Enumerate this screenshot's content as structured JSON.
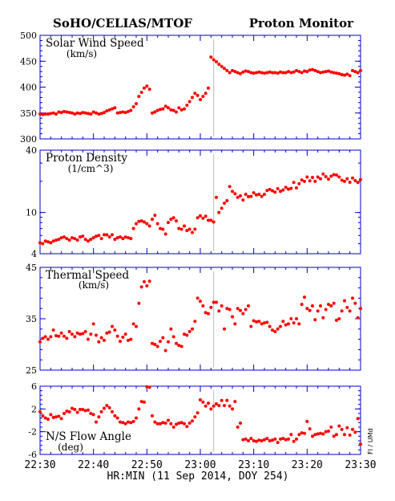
{
  "header": {
    "left": "SoHO/CELIAS/MTOF",
    "right": "Proton Monitor"
  },
  "x_axis": {
    "label": "HR:MIN (11 Sep 2014, DOY 254)",
    "ticks": [
      "22:30",
      "22:40",
      "22:50",
      "23:00",
      "23:10",
      "23:20",
      "23:30"
    ],
    "range_minutes": [
      0,
      60
    ]
  },
  "credit": "FI / UMd",
  "colors": {
    "data": "#ff0000",
    "frame": "#0000cc",
    "marker_line": "#bbbbbb"
  },
  "chart_data": [
    {
      "type": "scatter",
      "title": "Solar Wind Speed",
      "subtitle": "(km/s)",
      "ylim": [
        300,
        500
      ],
      "yscale": "linear",
      "yticks": [
        "300",
        "350",
        "400",
        "450",
        "500"
      ],
      "vertical_marker_minute": 32.5,
      "series": [
        {
          "x": [
            0,
            0.5,
            1,
            1.5,
            2,
            2.5,
            3,
            3.5,
            4,
            4.5,
            5,
            5.5,
            6,
            6.5,
            7,
            7.5,
            8,
            8.5,
            9,
            9.5,
            10,
            10.5,
            11,
            11.5,
            12,
            12.5,
            13,
            13.5,
            14,
            14.5,
            15,
            15.5,
            16,
            16.5,
            17,
            17.5,
            18,
            18.5,
            19,
            19.5,
            20,
            20.5,
            21,
            21.5,
            22,
            22.5,
            23,
            23.5,
            24,
            24.5,
            25,
            25.5,
            26,
            26.5,
            27,
            27.5,
            28,
            28.5,
            29,
            29.5,
            30,
            30.5,
            31,
            31.5,
            32,
            32.5,
            33,
            33.5,
            34,
            34.5,
            35,
            35.5,
            36,
            36.5,
            37,
            37.5,
            38,
            38.5,
            39,
            39.5,
            40,
            40.5,
            41,
            41.5,
            42,
            42.5,
            43,
            43.5,
            44,
            44.5,
            45,
            45.5,
            46,
            46.5,
            47,
            47.5,
            48,
            48.5,
            49,
            49.5,
            50,
            50.5,
            51,
            51.5,
            52,
            52.5,
            53,
            53.5,
            54,
            54.5,
            55,
            55.5,
            56,
            56.5,
            57,
            57.5,
            58,
            58.5,
            59,
            59.5,
            60
          ],
          "y": [
            348,
            347,
            348,
            348,
            349,
            350,
            348,
            352,
            351,
            353,
            352,
            351,
            350,
            348,
            350,
            349,
            351,
            350,
            349,
            348,
            352,
            350,
            348,
            349,
            351,
            354,
            356,
            358,
            360,
            350,
            351,
            352,
            351,
            353,
            355,
            362,
            368,
            382,
            390,
            398,
            402,
            396,
            350,
            352,
            355,
            357,
            358,
            363,
            360,
            356,
            355,
            352,
            360,
            356,
            358,
            365,
            372,
            380,
            388,
            384,
            376,
            382,
            388,
            398,
            458,
            453,
            449,
            444,
            440,
            436,
            432,
            428,
            432,
            430,
            428,
            426,
            429,
            431,
            430,
            428,
            427,
            428,
            429,
            428,
            427,
            428,
            429,
            428,
            428,
            427,
            429,
            428,
            428,
            430,
            428,
            429,
            432,
            430,
            428,
            431,
            430,
            433,
            434,
            432,
            430,
            428,
            429,
            430,
            431,
            429,
            428,
            427,
            426,
            424,
            423,
            425,
            422,
            432,
            430,
            428,
            432
          ]
        }
      ]
    },
    {
      "type": "scatter",
      "title": "Proton Density",
      "subtitle": "(1/cm^3)",
      "ylim": [
        4,
        40
      ],
      "yscale": "log",
      "yticks": [
        "4",
        "10",
        "40"
      ],
      "vertical_marker_minute": 32.5,
      "series": [
        {
          "x": [
            0,
            0.5,
            1,
            1.5,
            2,
            2.5,
            3,
            3.5,
            4,
            4.5,
            5,
            5.5,
            6,
            6.5,
            7,
            7.5,
            8,
            8.5,
            9,
            9.5,
            10,
            10.5,
            11,
            11.5,
            12,
            12.5,
            13,
            13.5,
            14,
            14.5,
            15,
            15.5,
            16,
            16.5,
            17,
            17.5,
            18,
            18.5,
            19,
            19.5,
            20,
            20.5,
            21,
            21.5,
            22,
            22.5,
            23,
            23.5,
            24,
            24.5,
            25,
            25.5,
            26,
            26.5,
            27,
            27.5,
            28,
            28.5,
            29,
            29.5,
            30,
            30.5,
            31,
            31.5,
            32,
            32.5,
            33,
            33.5,
            34,
            34.5,
            35,
            35.5,
            36,
            36.5,
            37,
            37.5,
            38,
            38.5,
            39,
            39.5,
            40,
            40.5,
            41,
            41.5,
            42,
            42.5,
            43,
            43.5,
            44,
            44.5,
            45,
            45.5,
            46,
            46.5,
            47,
            47.5,
            48,
            48.5,
            49,
            49.5,
            50,
            50.5,
            51,
            51.5,
            52,
            52.5,
            53,
            53.5,
            54,
            54.5,
            55,
            55.5,
            56,
            56.5,
            57,
            57.5,
            58,
            58.5,
            59,
            59.5,
            60
          ],
          "y": [
            5.1,
            5.0,
            5.3,
            5.2,
            5.1,
            5.3,
            5.4,
            5.5,
            5.7,
            5.8,
            5.6,
            5.4,
            5.7,
            5.6,
            5.4,
            5.8,
            5.9,
            5.5,
            5.3,
            5.5,
            5.7,
            5.9,
            6.0,
            5.6,
            6.1,
            6.1,
            5.8,
            6.1,
            5.5,
            5.7,
            5.8,
            5.6,
            5.8,
            5.7,
            5.6,
            7.0,
            7.8,
            8.2,
            8.3,
            8.1,
            7.8,
            7.4,
            8.6,
            9.4,
            7.8,
            7.0,
            6.9,
            6.2,
            8.0,
            8.6,
            8.9,
            8.3,
            7.0,
            6.9,
            7.4,
            6.7,
            6.9,
            6.4,
            6.9,
            8.9,
            9.3,
            8.8,
            9.2,
            8.4,
            8.4,
            8.1,
            14.0,
            10.0,
            11.0,
            12.3,
            13.0,
            17.8,
            16.0,
            15.2,
            14.0,
            14.5,
            13.2,
            15.0,
            14.2,
            14.3,
            15.5,
            14.8,
            15.0,
            14.3,
            15.0,
            16.3,
            16.7,
            16.2,
            15.7,
            17.0,
            16.0,
            16.5,
            17.5,
            16.8,
            17.1,
            19.5,
            17.3,
            19.0,
            20.6,
            20.0,
            22.0,
            20.2,
            21.8,
            20.0,
            22.0,
            21.2,
            23.5,
            22.2,
            21.0,
            22.4,
            23.2,
            23.0,
            22.0,
            20.5,
            20.0,
            21.2,
            19.6,
            21.5,
            20.3,
            19.5,
            20.8
          ]
        }
      ]
    },
    {
      "type": "scatter",
      "title": "Thermal Speed",
      "subtitle": "(km/s)",
      "ylim": [
        25,
        45
      ],
      "yscale": "linear",
      "yticks": [
        "25",
        "35",
        "45"
      ],
      "vertical_marker_minute": 32.5,
      "series": [
        {
          "x": [
            0,
            0.5,
            1,
            1.5,
            2,
            2.5,
            3,
            3.5,
            4,
            4.5,
            5,
            5.5,
            6,
            6.5,
            7,
            7.5,
            8,
            8.5,
            9,
            9.5,
            10,
            10.5,
            11,
            11.5,
            12,
            12.5,
            13,
            13.5,
            14,
            14.5,
            15,
            15.5,
            16,
            16.5,
            17,
            17.5,
            18,
            18.5,
            19,
            19.5,
            20,
            20.5,
            21,
            21.5,
            22,
            22.5,
            23,
            23.5,
            24,
            24.5,
            25,
            25.5,
            26,
            26.5,
            27,
            27.5,
            28,
            28.5,
            29,
            29.5,
            30,
            30.5,
            31,
            31.5,
            32,
            32.5,
            33,
            33.5,
            34,
            34.5,
            35,
            35.5,
            36,
            36.5,
            37,
            37.5,
            38,
            38.5,
            39,
            39.5,
            40,
            40.5,
            41,
            41.5,
            42,
            42.5,
            43,
            43.5,
            44,
            44.5,
            45,
            45.5,
            46,
            46.5,
            47,
            47.5,
            48,
            48.5,
            49,
            49.5,
            50,
            50.5,
            51,
            51.5,
            52,
            52.5,
            53,
            53.5,
            54,
            54.5,
            55,
            55.5,
            56,
            56.5,
            57,
            57.5,
            58,
            58.5,
            59,
            59.5,
            60
          ],
          "y": [
            30.5,
            31.2,
            31.5,
            31.0,
            31.5,
            32.8,
            31.7,
            31.6,
            32.2,
            31.6,
            31.2,
            32.5,
            32.0,
            31.5,
            32.2,
            32.0,
            32.1,
            32.5,
            31.0,
            32.0,
            34.0,
            31.8,
            30.5,
            31.3,
            30.8,
            32.2,
            32.4,
            33.5,
            32.8,
            31.6,
            30.6,
            31.4,
            32.0,
            30.8,
            31.0,
            34.0,
            33.5,
            38.0,
            41.2,
            42.2,
            41.4,
            42.3,
            30.2,
            30.0,
            29.6,
            30.6,
            31.3,
            28.8,
            30.5,
            33.0,
            31.5,
            30.2,
            29.8,
            29.6,
            32.0,
            31.8,
            32.5,
            33.0,
            34.5,
            39.0,
            38.4,
            37.5,
            36.2,
            36.0,
            37.2,
            38.2,
            38.2,
            36.5,
            37.5,
            33.0,
            37.0,
            36.8,
            35.4,
            34.0,
            37.0,
            36.6,
            36.0,
            36.8,
            37.5,
            33.5,
            34.6,
            34.4,
            34.5,
            34.0,
            34.2,
            34.3,
            33.5,
            32.8,
            32.5,
            33.0,
            33.5,
            34.5,
            33.8,
            34.0,
            35.0,
            34.2,
            35.0,
            34.0,
            37.8,
            39.2,
            37.0,
            36.6,
            37.5,
            34.8,
            36.5,
            37.5,
            35.2,
            36.8,
            37.8,
            37.5,
            38.0,
            34.7,
            35.0,
            36.5,
            38.5,
            37.2,
            36.5,
            39.0,
            38.0,
            35.2,
            37.0
          ]
        }
      ]
    },
    {
      "type": "scatter",
      "title": "N/S Flow Angle",
      "subtitle": "(deg)",
      "ylim": [
        -6,
        6
      ],
      "yscale": "linear",
      "yticks": [
        "-6",
        "-2",
        "2",
        "6"
      ],
      "vertical_marker_minute": 32.5,
      "series": [
        {
          "x": [
            0,
            0.5,
            1,
            1.5,
            2,
            2.5,
            3,
            3.5,
            4,
            4.5,
            5,
            5.5,
            6,
            6.5,
            7,
            7.5,
            8,
            8.5,
            9,
            9.5,
            10,
            10.5,
            11,
            11.5,
            12,
            12.5,
            13,
            13.5,
            14,
            14.5,
            15,
            15.5,
            16,
            16.5,
            17,
            17.5,
            18,
            18.5,
            19,
            19.5,
            20,
            20.5,
            21,
            21.5,
            22,
            22.5,
            23,
            23.5,
            24,
            24.5,
            25,
            25.5,
            26,
            26.5,
            27,
            27.5,
            28,
            28.5,
            29,
            29.5,
            30,
            30.5,
            31,
            31.5,
            32,
            32.5,
            33,
            33.5,
            34,
            34.5,
            35,
            35.5,
            36,
            36.5,
            37,
            37.5,
            38,
            38.5,
            39,
            39.5,
            40,
            40.5,
            41,
            41.5,
            42,
            42.5,
            43,
            43.5,
            44,
            44.5,
            45,
            45.5,
            46,
            46.5,
            47,
            47.5,
            48,
            48.5,
            49,
            49.5,
            50,
            50.5,
            51,
            51.5,
            52,
            52.5,
            53,
            53.5,
            54,
            54.5,
            55,
            55.5,
            56,
            56.5,
            57,
            57.5,
            58,
            58.5,
            59,
            59.5,
            60
          ],
          "y": [
            1.5,
            0.8,
            0.4,
            0.2,
            1.0,
            0.5,
            0.6,
            0.7,
            0.3,
            1.2,
            1.6,
            1.5,
            2.1,
            1.9,
            1.4,
            1.9,
            1.9,
            1.7,
            1.8,
            1.2,
            1.0,
            -0.3,
            0.6,
            1.5,
            2.1,
            2.6,
            2.2,
            1.5,
            0.8,
            0.4,
            -0.3,
            -0.4,
            -0.6,
            -0.3,
            -0.4,
            -0.2,
            0.4,
            2.0,
            3.3,
            3.2,
            5.9,
            5.8,
            0.8,
            -0.3,
            -0.6,
            -0.6,
            -0.4,
            -0.5,
            0.0,
            -0.6,
            -1.2,
            -0.7,
            -0.5,
            -0.4,
            -0.6,
            -1.1,
            -0.5,
            -0.1,
            0.6,
            1.3,
            3.6,
            3.2,
            2.5,
            3.0,
            2.0,
            2.5,
            2.9,
            2.6,
            3.5,
            2.6,
            3.5,
            2.5,
            2.0,
            3.3,
            -1.2,
            -0.5,
            -3.4,
            -3.3,
            -3.6,
            -3.2,
            -3.6,
            -3.7,
            -3.5,
            -3.6,
            -3.4,
            -3.2,
            -3.6,
            -3.5,
            -3.3,
            -3.9,
            -3.3,
            -3.2,
            -3.4,
            -3.3,
            -2.5,
            -3.7,
            -3.3,
            -2.5,
            -2.2,
            -2.3,
            -0.2,
            -1.5,
            -2.8,
            -2.5,
            -2.4,
            -2.3,
            -2.4,
            -2.0,
            -1.9,
            -1.2,
            -2.8,
            -2.5,
            -1.0,
            -1.6,
            -2.5,
            -1.3,
            -2.6,
            -1.6,
            -2.1,
            0.3,
            -4.2
          ]
        }
      ]
    }
  ]
}
